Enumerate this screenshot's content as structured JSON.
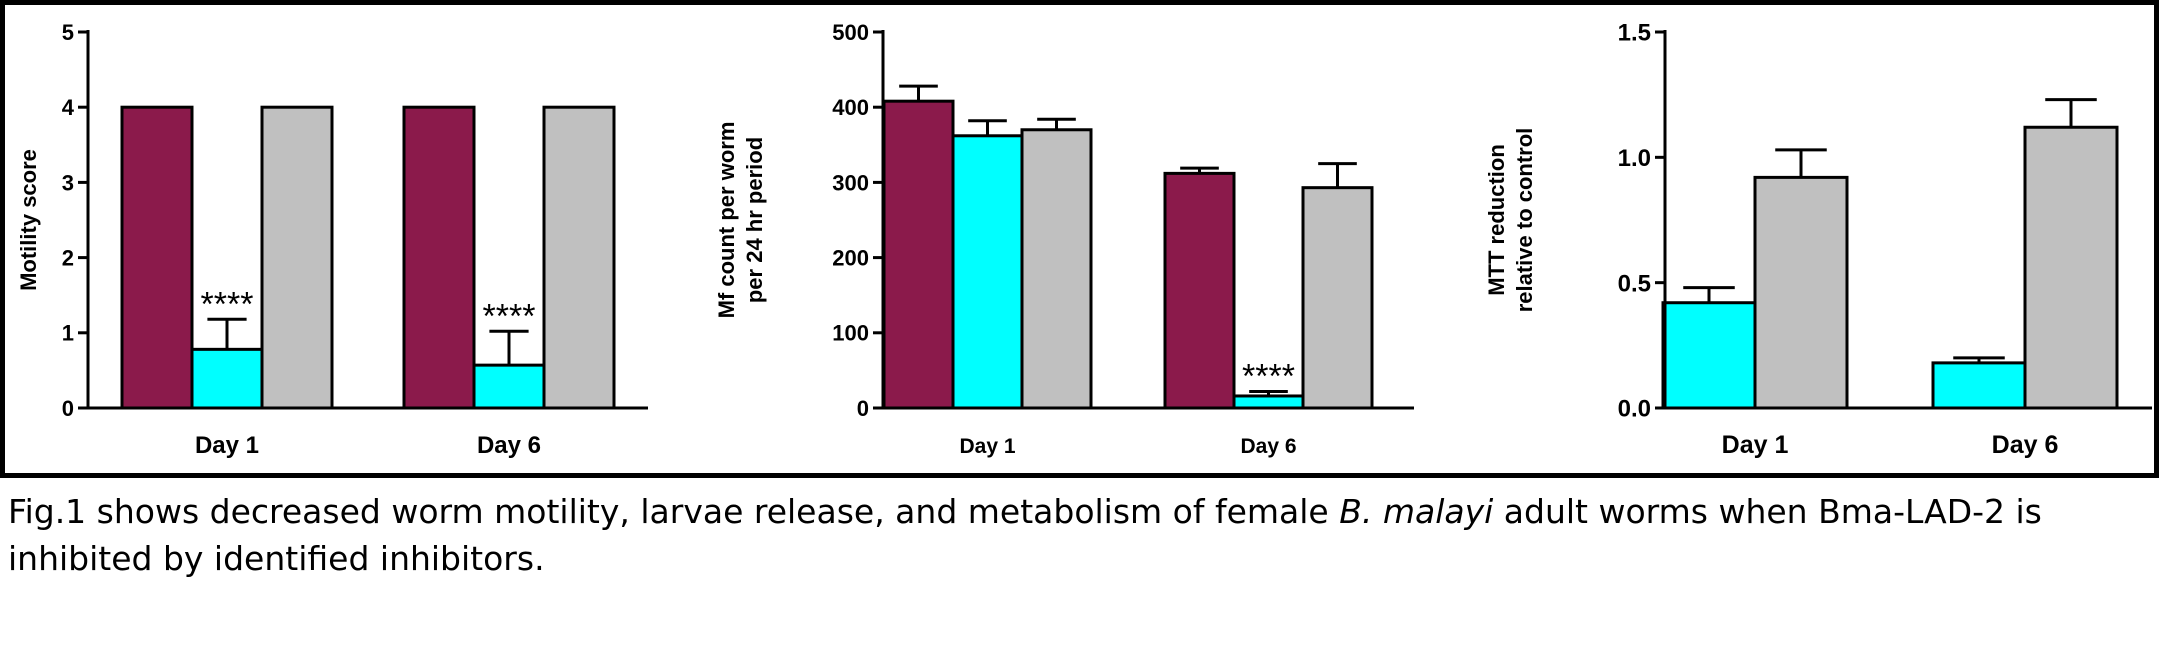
{
  "colors": {
    "series_1": "#8b1a4b",
    "series_2": "#00ffff",
    "series_3": "#c0c0c0",
    "frame": "#000000"
  },
  "chart_data": [
    {
      "type": "bar",
      "categories": [
        "Day 1",
        "Day 6"
      ],
      "ylabel": "Motility score",
      "xlabel": "",
      "ylim": [
        0,
        5
      ],
      "yticks": [
        0,
        1,
        2,
        3,
        4,
        5
      ],
      "tick_labels": [
        "0",
        "1",
        "2",
        "3",
        "4",
        "5"
      ],
      "series": [
        {
          "color_key": "series_1",
          "values": [
            4.0,
            4.0
          ],
          "errors": [
            0,
            0
          ],
          "sig": [
            "",
            ""
          ]
        },
        {
          "color_key": "series_2",
          "values": [
            0.78,
            0.57
          ],
          "errors": [
            0.4,
            0.45
          ],
          "sig": [
            "****",
            "****"
          ]
        },
        {
          "color_key": "series_3",
          "values": [
            4.0,
            4.0
          ],
          "errors": [
            0,
            0
          ],
          "sig": [
            "",
            ""
          ]
        }
      ]
    },
    {
      "type": "bar",
      "categories": [
        "Day 1",
        "Day 6"
      ],
      "ylabel": "Mf count per worm per 24 hr period",
      "ylabel_lines": [
        "Mf count per worm",
        "per 24 hr period"
      ],
      "xlabel": "",
      "ylim": [
        0,
        500
      ],
      "yticks": [
        0,
        100,
        200,
        300,
        400,
        500
      ],
      "tick_labels": [
        "0",
        "100",
        "200",
        "300",
        "400",
        "500"
      ],
      "series": [
        {
          "color_key": "series_1",
          "values": [
            408,
            312
          ],
          "errors": [
            20,
            7
          ],
          "sig": [
            "",
            ""
          ]
        },
        {
          "color_key": "series_2",
          "values": [
            362,
            16
          ],
          "errors": [
            20,
            6
          ],
          "sig": [
            "",
            "****"
          ]
        },
        {
          "color_key": "series_3",
          "values": [
            370,
            293
          ],
          "errors": [
            14,
            32
          ],
          "sig": [
            "",
            ""
          ]
        }
      ]
    },
    {
      "type": "bar",
      "categories": [
        "Day 1",
        "Day 6"
      ],
      "ylabel": "MTT reduction relative to control",
      "ylabel_lines": [
        "MTT reduction",
        "relative to control"
      ],
      "xlabel": "",
      "ylim": [
        0,
        1.5
      ],
      "yticks": [
        0,
        0.5,
        1.0,
        1.5
      ],
      "tick_labels": [
        "0.0",
        "0.5",
        "1.0",
        "1.5"
      ],
      "series": [
        {
          "color_key": "series_2",
          "values": [
            0.42,
            0.18
          ],
          "errors": [
            0.06,
            0.02
          ],
          "sig": [
            "",
            ""
          ]
        },
        {
          "color_key": "series_3",
          "values": [
            0.92,
            1.12
          ],
          "errors": [
            0.11,
            0.11
          ],
          "sig": [
            "",
            ""
          ]
        }
      ]
    }
  ],
  "caption": {
    "before": "Fig.1 shows decreased worm motility, larvae release, and metabolism of female ",
    "species": "B. malayi",
    "after": " adult worms when Bma-LAD-2 is inhibited by identified inhibitors."
  }
}
